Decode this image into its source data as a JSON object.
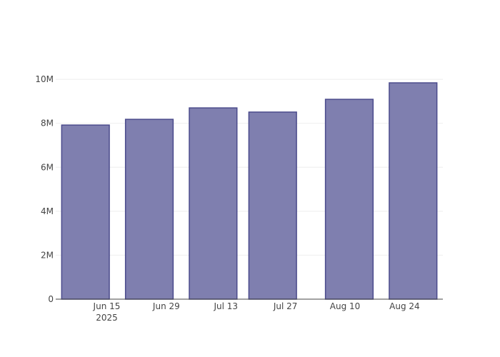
{
  "chart_data": {
    "type": "bar",
    "x": [
      "2025-06-10",
      "2025-06-25",
      "2025-07-10",
      "2025-07-24",
      "2025-08-11",
      "2025-08-26"
    ],
    "values": [
      7920000,
      8180000,
      8700000,
      8510000,
      9090000,
      9840000
    ],
    "color": "#7f7faf",
    "edge_color": "#4b4b8c",
    "xlim": [
      "2025-06-03",
      "2025-09-02"
    ],
    "xticks": [
      {
        "value": "2025-06-15",
        "label": "Jun 15\n2025"
      },
      {
        "value": "2025-06-29",
        "label": "Jun 29"
      },
      {
        "value": "2025-07-13",
        "label": "Jul 13"
      },
      {
        "value": "2025-07-27",
        "label": "Jul 27"
      },
      {
        "value": "2025-08-10",
        "label": "Aug 10"
      },
      {
        "value": "2025-08-24",
        "label": "Aug 24"
      }
    ],
    "ylim": [
      0,
      10360000
    ],
    "yticks": [
      0,
      {
        "value": 2000000,
        "label": "2M"
      },
      {
        "value": 4000000,
        "label": "4M"
      },
      {
        "value": 6000000,
        "label": "6M"
      },
      {
        "value": 8000000,
        "label": "8M"
      },
      {
        "value": 10000000,
        "label": "10M"
      }
    ],
    "grid": true
  }
}
